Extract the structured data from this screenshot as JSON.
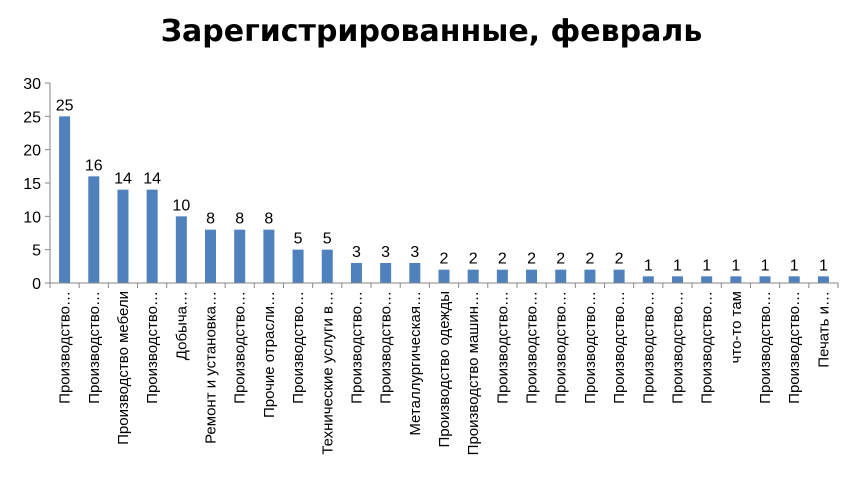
{
  "chart_data": {
    "type": "bar",
    "title": "Зарегистрированные, февраль",
    "xlabel": "",
    "ylabel": "",
    "ylim": [
      0,
      30
    ],
    "yticks": [
      0,
      5,
      10,
      15,
      20,
      25,
      30
    ],
    "grid": false,
    "legend": "none",
    "bar_color": "#4f81bd",
    "categories": [
      "Производство…",
      "Производство…",
      "Производство мебели",
      "Производство…",
      "Добыча…",
      "Ремонт и установка…",
      "Производство…",
      "Прочие отрасли…",
      "Производство…",
      "Технические услуги в…",
      "Производство…",
      "Производство…",
      "Металлургическая…",
      "Производство одежды",
      "Производство машин…",
      "Производство…",
      "Производство…",
      "Производство…",
      "Производство…",
      "Производство…",
      "Производство…",
      "Производство…",
      "Производство…",
      "что-то там",
      "Производство…",
      "Производство…",
      "Печать и…"
    ],
    "values": [
      25,
      16,
      14,
      14,
      10,
      8,
      8,
      8,
      5,
      5,
      3,
      3,
      3,
      2,
      2,
      2,
      2,
      2,
      2,
      2,
      1,
      1,
      1,
      1,
      1,
      1,
      1
    ]
  }
}
